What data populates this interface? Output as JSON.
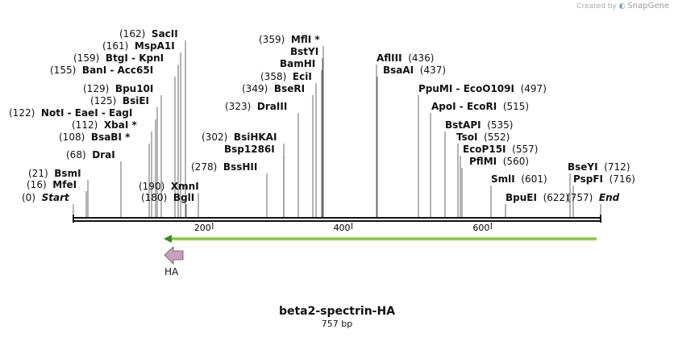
{
  "credit": {
    "prefix": "Created by",
    "brand": "SnapGene"
  },
  "map": {
    "title": "beta2-spectrin-HA",
    "length": "757 bp",
    "total_bp": 757
  },
  "ruler": {
    "ticks": [
      {
        "bp": 200,
        "label": "200"
      },
      {
        "bp": 400,
        "label": "400"
      },
      {
        "bp": 600,
        "label": "600"
      }
    ]
  },
  "features": [
    {
      "name": "HA",
      "color": "#c9a0b9",
      "arrow_color": "#a0c040",
      "direction": "reverse"
    }
  ],
  "sites": [
    {
      "pos": "(0)",
      "bp": 0,
      "parts": [
        {
          "t": "Start",
          "s": "ital"
        }
      ]
    },
    {
      "pos": "(16)",
      "bp": 16,
      "parts": [
        {
          "t": "MfeI"
        }
      ]
    },
    {
      "pos": "(21)",
      "bp": 21,
      "parts": [
        {
          "t": "BsmI"
        }
      ]
    },
    {
      "pos": "(68)",
      "bp": 68,
      "parts": [
        {
          "t": "DraI"
        }
      ]
    },
    {
      "pos": "(108)",
      "bp": 108,
      "parts": [
        {
          "t": "BsaBI *"
        }
      ]
    },
    {
      "pos": "(112)",
      "bp": 112,
      "parts": [
        {
          "t": "XbaI *"
        }
      ]
    },
    {
      "pos": "(122)",
      "bp": 122,
      "parts": [
        {
          "t": "NotI"
        },
        {
          "t": " - ",
          "s": "sep"
        },
        {
          "t": "EaeI"
        },
        {
          "t": " - ",
          "s": "sep"
        },
        {
          "t": "EagI"
        }
      ]
    },
    {
      "pos": "(125)",
      "bp": 125,
      "parts": [
        {
          "t": "BsiEI"
        }
      ]
    },
    {
      "pos": "(129)",
      "bp": 129,
      "parts": [
        {
          "t": "Bpu10I"
        }
      ]
    },
    {
      "pos": "(155)",
      "bp": 155,
      "parts": [
        {
          "t": "BanI"
        },
        {
          "t": " - ",
          "s": "sep"
        },
        {
          "t": "Acc65I"
        }
      ]
    },
    {
      "pos": "(159)",
      "bp": 159,
      "parts": [
        {
          "t": "BtgI"
        },
        {
          "t": " - ",
          "s": "sep"
        },
        {
          "t": "KpnI"
        }
      ]
    },
    {
      "pos": "(161)",
      "bp": 161,
      "parts": [
        {
          "t": "MspA1I"
        }
      ]
    },
    {
      "pos": "(162)",
      "bp": 162,
      "parts": [
        {
          "t": "SacII"
        }
      ]
    },
    {
      "pos": "(180)",
      "bp": 180,
      "parts": [
        {
          "t": "BglI"
        }
      ]
    },
    {
      "pos": "(190)",
      "bp": 190,
      "parts": [
        {
          "t": "XmnI"
        }
      ]
    },
    {
      "pos": "(278)",
      "bp": 278,
      "parts": [
        {
          "t": "BssHII"
        }
      ]
    },
    {
      "pos": "",
      "bp": 302,
      "parts": [
        {
          "t": "Bsp1286I"
        }
      ]
    },
    {
      "pos": "(302)",
      "bp": 302,
      "parts": [
        {
          "t": "BsiHKAI"
        }
      ]
    },
    {
      "pos": "(323)",
      "bp": 323,
      "parts": [
        {
          "t": "DraIII"
        }
      ]
    },
    {
      "pos": "(349)",
      "bp": 349,
      "parts": [
        {
          "t": "BseRI"
        }
      ]
    },
    {
      "pos": "(358)",
      "bp": 358,
      "parts": [
        {
          "t": "EciI"
        }
      ]
    },
    {
      "pos": "",
      "bp": 359,
      "parts": [
        {
          "t": "BamHI"
        }
      ]
    },
    {
      "pos": "",
      "bp": 359,
      "parts": [
        {
          "t": "BstYI"
        }
      ]
    },
    {
      "pos": "(359)",
      "bp": 359,
      "parts": [
        {
          "t": "MflI *"
        }
      ]
    },
    {
      "pos": "(436)",
      "bp": 436,
      "parts": [
        {
          "t": "AflIII"
        }
      ]
    },
    {
      "pos": "(437)",
      "bp": 437,
      "parts": [
        {
          "t": "BsaAI"
        }
      ]
    },
    {
      "pos": "(497)",
      "bp": 497,
      "parts": [
        {
          "t": "PpuMI"
        },
        {
          "t": " - ",
          "s": "sep"
        },
        {
          "t": "EcoO109I"
        }
      ]
    },
    {
      "pos": "(515)",
      "bp": 515,
      "parts": [
        {
          "t": "ApoI"
        },
        {
          "t": " - ",
          "s": "sep"
        },
        {
          "t": "EcoRI"
        }
      ]
    },
    {
      "pos": "(535)",
      "bp": 535,
      "parts": [
        {
          "t": "BstAPI"
        }
      ]
    },
    {
      "pos": "(552)",
      "bp": 552,
      "parts": [
        {
          "t": "TsoI"
        }
      ]
    },
    {
      "pos": "(557)",
      "bp": 557,
      "parts": [
        {
          "t": "EcoP15I"
        }
      ]
    },
    {
      "pos": "(560)",
      "bp": 560,
      "parts": [
        {
          "t": "PflMI"
        }
      ]
    },
    {
      "pos": "(601)",
      "bp": 601,
      "parts": [
        {
          "t": "SmlI"
        }
      ]
    },
    {
      "pos": "(622)",
      "bp": 622,
      "parts": [
        {
          "t": "BpuEI"
        }
      ]
    },
    {
      "pos": "(712)",
      "bp": 712,
      "parts": [
        {
          "t": "BseYI"
        }
      ]
    },
    {
      "pos": "(716)",
      "bp": 716,
      "parts": [
        {
          "t": "PspFI"
        }
      ]
    },
    {
      "pos": "(757)",
      "bp": 757,
      "parts": [
        {
          "t": "End",
          "s": "ital"
        }
      ]
    }
  ]
}
